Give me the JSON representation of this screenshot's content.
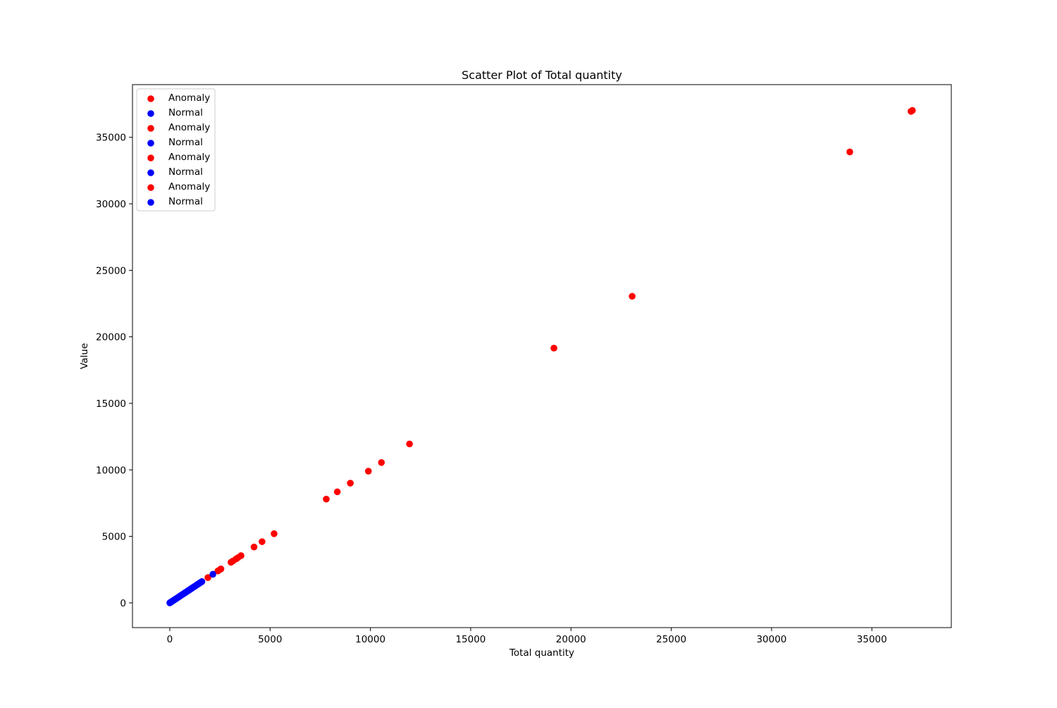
{
  "chart_data": {
    "type": "scatter",
    "title": "Scatter Plot of Total quantity",
    "xlabel": "Total quantity",
    "ylabel": "Value",
    "xlim": [
      -1860,
      38960
    ],
    "ylim": [
      -1860,
      38960
    ],
    "xticks": [
      0,
      5000,
      10000,
      15000,
      20000,
      25000,
      30000,
      35000
    ],
    "yticks": [
      0,
      5000,
      10000,
      15000,
      20000,
      25000,
      30000,
      35000
    ],
    "xtick_labels": [
      "0",
      "5000",
      "10000",
      "15000",
      "20000",
      "25000",
      "30000",
      "35000"
    ],
    "ytick_labels": [
      "0",
      "5000",
      "10000",
      "15000",
      "20000",
      "25000",
      "30000",
      "35000"
    ],
    "grid": false,
    "legend_position": "upper-left",
    "legend_entries": [
      {
        "label": "Anomaly",
        "color": "#ff0000"
      },
      {
        "label": "Normal",
        "color": "#0000ff"
      },
      {
        "label": "Anomaly",
        "color": "#ff0000"
      },
      {
        "label": "Normal",
        "color": "#0000ff"
      },
      {
        "label": "Anomaly",
        "color": "#ff0000"
      },
      {
        "label": "Normal",
        "color": "#0000ff"
      },
      {
        "label": "Anomaly",
        "color": "#ff0000"
      },
      {
        "label": "Normal",
        "color": "#0000ff"
      }
    ],
    "series": [
      {
        "name": "Anomaly",
        "color": "#ff0000",
        "points": [
          [
            1900,
            1900
          ],
          [
            2400,
            2400
          ],
          [
            2500,
            2500
          ],
          [
            2550,
            2550
          ],
          [
            3050,
            3050
          ],
          [
            3150,
            3150
          ],
          [
            3300,
            3300
          ],
          [
            3400,
            3400
          ],
          [
            3550,
            3550
          ],
          [
            4200,
            4200
          ],
          [
            4600,
            4600
          ],
          [
            5200,
            5200
          ],
          [
            7800,
            7800
          ],
          [
            8350,
            8350
          ],
          [
            9000,
            9000
          ],
          [
            9900,
            9900
          ],
          [
            10550,
            10550
          ],
          [
            11950,
            11950
          ],
          [
            19150,
            19150
          ],
          [
            23050,
            23050
          ],
          [
            33900,
            33900
          ],
          [
            36950,
            36950
          ],
          [
            37020,
            37020
          ]
        ]
      },
      {
        "name": "Normal",
        "color": "#0000ff",
        "points": [
          [
            0,
            0
          ],
          [
            20,
            20
          ],
          [
            40,
            40
          ],
          [
            60,
            60
          ],
          [
            80,
            80
          ],
          [
            100,
            100
          ],
          [
            130,
            130
          ],
          [
            160,
            160
          ],
          [
            200,
            200
          ],
          [
            240,
            240
          ],
          [
            280,
            280
          ],
          [
            320,
            320
          ],
          [
            360,
            360
          ],
          [
            400,
            400
          ],
          [
            450,
            450
          ],
          [
            500,
            500
          ],
          [
            550,
            550
          ],
          [
            600,
            600
          ],
          [
            650,
            650
          ],
          [
            700,
            700
          ],
          [
            750,
            750
          ],
          [
            800,
            800
          ],
          [
            850,
            850
          ],
          [
            900,
            900
          ],
          [
            950,
            950
          ],
          [
            1000,
            1000
          ],
          [
            1050,
            1050
          ],
          [
            1100,
            1100
          ],
          [
            1150,
            1150
          ],
          [
            1200,
            1200
          ],
          [
            1250,
            1250
          ],
          [
            1300,
            1300
          ],
          [
            1350,
            1350
          ],
          [
            1400,
            1400
          ],
          [
            1450,
            1450
          ],
          [
            1500,
            1500
          ],
          [
            1550,
            1550
          ],
          [
            1600,
            1600
          ],
          [
            2150,
            2150
          ]
        ]
      }
    ]
  }
}
